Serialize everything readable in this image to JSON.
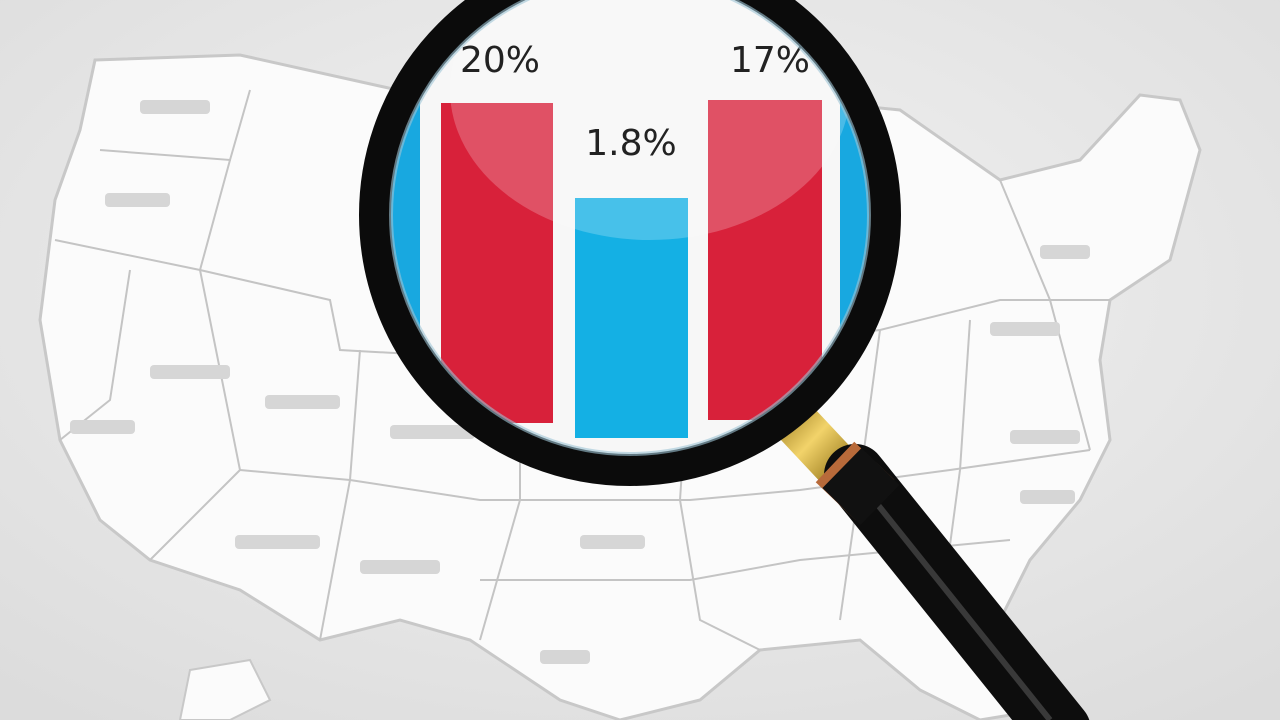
{
  "magnifier": {
    "labels": [
      "20%",
      "1.8%",
      "17%"
    ]
  }
}
